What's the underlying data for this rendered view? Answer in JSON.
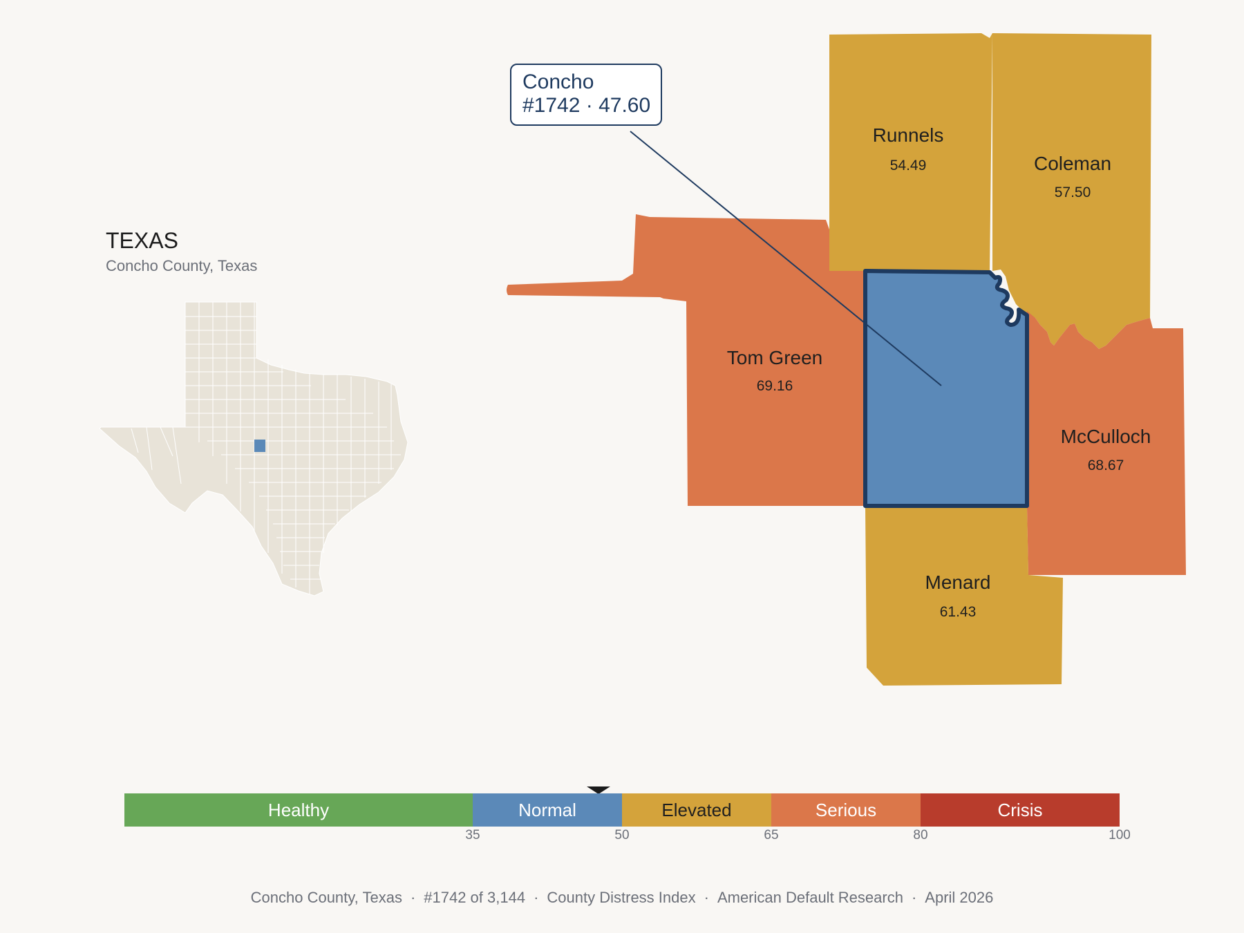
{
  "inset": {
    "title": "TEXAS",
    "subtitle": "Concho County, Texas"
  },
  "focus_county": {
    "name": "Concho",
    "rank": "#1742",
    "score": 47.6,
    "callout_line1": "Concho",
    "callout_line2": "#1742 · 47.60",
    "color": "#5b89b8"
  },
  "counties": [
    {
      "name": "Runnels",
      "value": "54.49",
      "color": "#d4a33b"
    },
    {
      "name": "Coleman",
      "value": "57.50",
      "color": "#d4a33b"
    },
    {
      "name": "Tom Green",
      "value": "69.16",
      "color": "#db774a"
    },
    {
      "name": "McCulloch",
      "value": "68.67",
      "color": "#db774a"
    },
    {
      "name": "Menard",
      "value": "61.43",
      "color": "#d4a33b"
    }
  ],
  "scale": {
    "segments": [
      {
        "label": "Healthy",
        "min": 0,
        "max": 35,
        "color": "#67a757",
        "text_color": "#ffffff"
      },
      {
        "label": "Normal",
        "min": 35,
        "max": 50,
        "color": "#5b89b8",
        "text_color": "#ffffff"
      },
      {
        "label": "Elevated",
        "min": 50,
        "max": 65,
        "color": "#d4a33b",
        "text_color": "#1f1f1f"
      },
      {
        "label": "Serious",
        "min": 65,
        "max": 80,
        "color": "#db774a",
        "text_color": "#ffffff"
      },
      {
        "label": "Crisis",
        "min": 80,
        "max": 100,
        "color": "#b83c2c",
        "text_color": "#ffffff"
      }
    ],
    "ticks": [
      "35",
      "50",
      "65",
      "80",
      "100"
    ],
    "marker_value": 47.6
  },
  "footer": {
    "items": [
      "Concho County, Texas",
      "#1742 of 3,144",
      "County Distress Index",
      "American Default Research",
      "April 2026"
    ],
    "separator": "·"
  }
}
